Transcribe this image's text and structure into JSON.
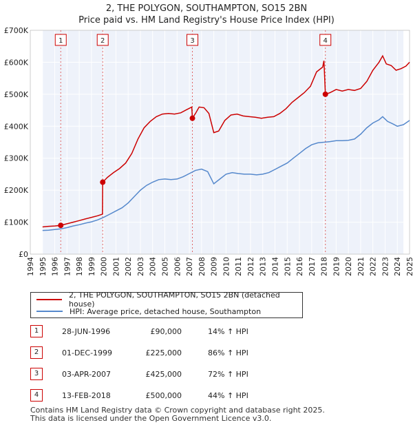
{
  "chart_data": {
    "type": "line",
    "title": "2, THE POLYGON, SOUTHAMPTON, SO15 2BN",
    "subtitle": "Price paid vs. HM Land Registry's House Price Index (HPI)",
    "xlim": [
      1994.0,
      2025.0
    ],
    "ylim": [
      0,
      700000
    ],
    "x_ticks": [
      1994,
      1995,
      1996,
      1997,
      1998,
      1999,
      2000,
      2001,
      2002,
      2003,
      2004,
      2005,
      2006,
      2007,
      2008,
      2009,
      2010,
      2011,
      2012,
      2013,
      2014,
      2015,
      2016,
      2017,
      2018,
      2019,
      2020,
      2021,
      2022,
      2023,
      2024,
      2025
    ],
    "y_ticks": [
      0,
      100000,
      200000,
      300000,
      400000,
      500000,
      600000,
      700000
    ],
    "y_tick_labels": [
      "£0",
      "£100K",
      "£200K",
      "£300K",
      "£400K",
      "£500K",
      "£600K",
      "£700K"
    ],
    "grid": true,
    "series": [
      {
        "name": "2, THE POLYGON, SOUTHAMPTON, SO15 2BN (detached house)",
        "color": "#cc0000",
        "points": [
          [
            1995.0,
            85000
          ],
          [
            1995.5,
            87000
          ],
          [
            1996.0,
            88000
          ],
          [
            1996.49,
            90000
          ],
          [
            1997.0,
            95000
          ],
          [
            1997.5,
            100000
          ],
          [
            1998.0,
            105000
          ],
          [
            1998.5,
            110000
          ],
          [
            1999.0,
            115000
          ],
          [
            1999.5,
            120000
          ],
          [
            1999.9,
            125000
          ],
          [
            1999.92,
            225000
          ],
          [
            2000.3,
            240000
          ],
          [
            2000.8,
            255000
          ],
          [
            2001.3,
            268000
          ],
          [
            2001.8,
            285000
          ],
          [
            2002.3,
            315000
          ],
          [
            2002.8,
            360000
          ],
          [
            2003.3,
            395000
          ],
          [
            2003.8,
            415000
          ],
          [
            2004.3,
            430000
          ],
          [
            2004.8,
            438000
          ],
          [
            2005.3,
            440000
          ],
          [
            2005.8,
            438000
          ],
          [
            2006.3,
            442000
          ],
          [
            2006.8,
            452000
          ],
          [
            2007.2,
            460000
          ],
          [
            2007.25,
            425000
          ],
          [
            2007.5,
            440000
          ],
          [
            2007.8,
            460000
          ],
          [
            2008.2,
            458000
          ],
          [
            2008.6,
            440000
          ],
          [
            2009.0,
            380000
          ],
          [
            2009.4,
            385000
          ],
          [
            2009.9,
            418000
          ],
          [
            2010.4,
            435000
          ],
          [
            2010.9,
            438000
          ],
          [
            2011.4,
            432000
          ],
          [
            2011.9,
            430000
          ],
          [
            2012.4,
            428000
          ],
          [
            2012.9,
            425000
          ],
          [
            2013.4,
            428000
          ],
          [
            2013.9,
            430000
          ],
          [
            2014.4,
            440000
          ],
          [
            2014.9,
            455000
          ],
          [
            2015.4,
            475000
          ],
          [
            2015.9,
            490000
          ],
          [
            2016.4,
            505000
          ],
          [
            2016.9,
            525000
          ],
          [
            2017.4,
            570000
          ],
          [
            2017.9,
            585000
          ],
          [
            2018.0,
            605000
          ],
          [
            2018.12,
            500000
          ],
          [
            2018.5,
            505000
          ],
          [
            2019.0,
            515000
          ],
          [
            2019.5,
            510000
          ],
          [
            2020.0,
            515000
          ],
          [
            2020.5,
            512000
          ],
          [
            2021.0,
            518000
          ],
          [
            2021.5,
            540000
          ],
          [
            2022.0,
            575000
          ],
          [
            2022.5,
            600000
          ],
          [
            2022.8,
            620000
          ],
          [
            2023.1,
            595000
          ],
          [
            2023.5,
            590000
          ],
          [
            2023.9,
            575000
          ],
          [
            2024.3,
            580000
          ],
          [
            2024.7,
            588000
          ],
          [
            2025.0,
            600000
          ]
        ]
      },
      {
        "name": "HPI: Average price, detached house, Southampton",
        "color": "#5588cc",
        "points": [
          [
            1995.0,
            74000
          ],
          [
            1995.5,
            75000
          ],
          [
            1996.0,
            77000
          ],
          [
            1996.5,
            79000
          ],
          [
            1997.0,
            83000
          ],
          [
            1997.5,
            88000
          ],
          [
            1998.0,
            92000
          ],
          [
            1998.5,
            97000
          ],
          [
            1999.0,
            101000
          ],
          [
            1999.5,
            107000
          ],
          [
            2000.0,
            115000
          ],
          [
            2000.5,
            125000
          ],
          [
            2001.0,
            135000
          ],
          [
            2001.5,
            145000
          ],
          [
            2002.0,
            160000
          ],
          [
            2002.5,
            180000
          ],
          [
            2003.0,
            200000
          ],
          [
            2003.5,
            215000
          ],
          [
            2004.0,
            225000
          ],
          [
            2004.5,
            233000
          ],
          [
            2005.0,
            235000
          ],
          [
            2005.5,
            233000
          ],
          [
            2006.0,
            235000
          ],
          [
            2006.5,
            242000
          ],
          [
            2007.0,
            252000
          ],
          [
            2007.5,
            262000
          ],
          [
            2008.0,
            266000
          ],
          [
            2008.5,
            258000
          ],
          [
            2009.0,
            220000
          ],
          [
            2009.5,
            235000
          ],
          [
            2010.0,
            250000
          ],
          [
            2010.5,
            255000
          ],
          [
            2011.0,
            252000
          ],
          [
            2011.5,
            250000
          ],
          [
            2012.0,
            250000
          ],
          [
            2012.5,
            248000
          ],
          [
            2013.0,
            250000
          ],
          [
            2013.5,
            255000
          ],
          [
            2014.0,
            265000
          ],
          [
            2014.5,
            275000
          ],
          [
            2015.0,
            285000
          ],
          [
            2015.5,
            300000
          ],
          [
            2016.0,
            315000
          ],
          [
            2016.5,
            330000
          ],
          [
            2017.0,
            342000
          ],
          [
            2017.5,
            348000
          ],
          [
            2018.0,
            350000
          ],
          [
            2018.5,
            352000
          ],
          [
            2019.0,
            355000
          ],
          [
            2019.5,
            355000
          ],
          [
            2020.0,
            356000
          ],
          [
            2020.5,
            360000
          ],
          [
            2021.0,
            375000
          ],
          [
            2021.5,
            395000
          ],
          [
            2022.0,
            410000
          ],
          [
            2022.5,
            420000
          ],
          [
            2022.8,
            430000
          ],
          [
            2023.2,
            415000
          ],
          [
            2023.6,
            408000
          ],
          [
            2024.0,
            400000
          ],
          [
            2024.5,
            405000
          ],
          [
            2025.0,
            418000
          ]
        ]
      }
    ],
    "sales": [
      {
        "label": "1",
        "x": 1996.49,
        "value": 90000,
        "label_value": 670000
      },
      {
        "label": "2",
        "x": 1999.92,
        "value": 225000,
        "label_value": 670000
      },
      {
        "label": "3",
        "x": 2007.25,
        "value": 425000,
        "label_value": 670000
      },
      {
        "label": "4",
        "x": 2018.12,
        "value": 500000,
        "label_value": 670000
      }
    ],
    "shaded_regions": [
      [
        1994.0,
        1995.0
      ],
      [
        2024.5,
        2025.0
      ]
    ]
  },
  "legend": {
    "property_label": "2, THE POLYGON, SOUTHAMPTON, SO15 2BN (detached house)",
    "hpi_label": "HPI: Average price, detached house, Southampton",
    "property_color": "#cc0000",
    "hpi_color": "#5588cc"
  },
  "transactions": [
    {
      "num": "1",
      "date": "28-JUN-1996",
      "price": "£90,000",
      "hpi": "14% ↑ HPI"
    },
    {
      "num": "2",
      "date": "01-DEC-1999",
      "price": "£225,000",
      "hpi": "86% ↑ HPI"
    },
    {
      "num": "3",
      "date": "03-APR-2007",
      "price": "£425,000",
      "hpi": "72% ↑ HPI"
    },
    {
      "num": "4",
      "date": "13-FEB-2018",
      "price": "£500,000",
      "hpi": "44% ↑ HPI"
    }
  ],
  "footer": {
    "line1": "Contains HM Land Registry data © Crown copyright and database right 2025.",
    "line2": "This data is licensed under the Open Government Licence v3.0."
  }
}
